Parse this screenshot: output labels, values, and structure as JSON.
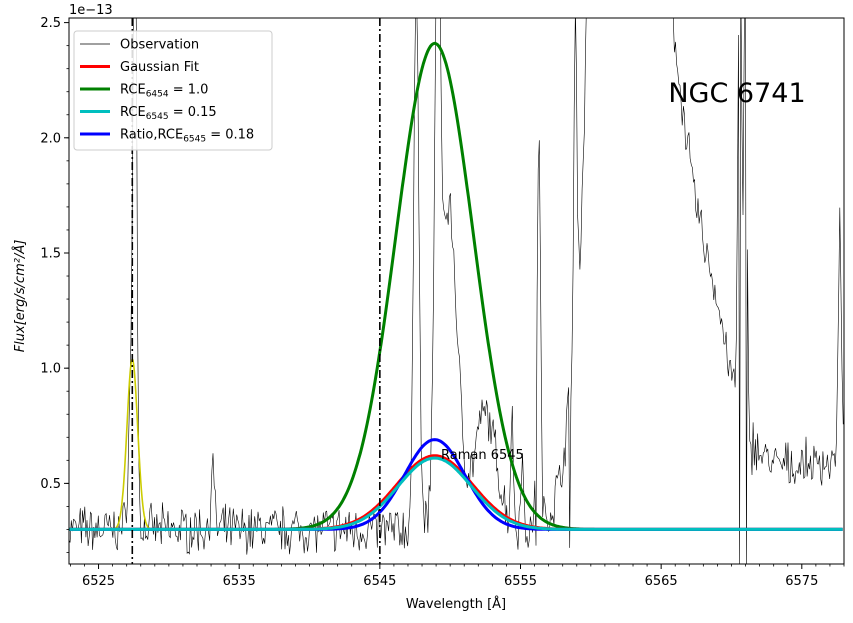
{
  "chart_data": {
    "type": "line",
    "title": "",
    "annotation_object": "NGC 6741",
    "annotation_raman": "Raman 6545",
    "xlabel": "Wavelength [Å]",
    "ylabel": "Flux[erg/s/cm²/Å]",
    "offset_text": "1e−13",
    "xlim": [
      6522.9,
      6578.0
    ],
    "ylim": [
      0.15,
      2.52
    ],
    "scale_factor": 1e-13,
    "x_ticks": [
      6525,
      6535,
      6545,
      6555,
      6565,
      6575
    ],
    "x_tick_labels": [
      "6525",
      "6535",
      "6545",
      "6555",
      "6565",
      "6575"
    ],
    "y_ticks": [
      0.5,
      1.0,
      1.5,
      2.0,
      2.5
    ],
    "y_tick_labels": [
      "0.5",
      "1.0",
      "1.5",
      "2.0",
      "2.5"
    ],
    "vlines": [
      6527.4,
      6545.0
    ],
    "grid": false,
    "legend_position": "top-left",
    "legend": [
      {
        "label": "Observation",
        "color": "#000000",
        "width": "thin"
      },
      {
        "label": "Gaussian Fit",
        "color": "#ff0000",
        "width": "thick"
      },
      {
        "label_main": "RCE",
        "label_sub": "6454",
        "label_rest": " = 1.0",
        "color": "#008000",
        "width": "thick"
      },
      {
        "label_main": "RCE",
        "label_sub": "6545",
        "label_rest": " = 0.15",
        "color": "#00bfbf",
        "width": "thick"
      },
      {
        "label_main": "Ratio,RCE",
        "label_sub": "6545",
        "label_rest": " = 0.18",
        "color": "#0000ff",
        "width": "thick"
      }
    ],
    "baseline": 0.3,
    "gaussian_models": [
      {
        "name": "Gaussian Fit",
        "color": "#ff0000",
        "center": 6548.9,
        "amplitude": 0.32,
        "sigma": 2.7
      },
      {
        "name": "RCE6454",
        "color": "#008000",
        "center": 6548.9,
        "amplitude": 2.11,
        "sigma": 2.75
      },
      {
        "name": "RCE6545",
        "color": "#00bfbf",
        "center": 6548.9,
        "amplitude": 0.31,
        "sigma": 2.6
      },
      {
        "name": "Ratio RCE6545",
        "color": "#0000ff",
        "center": 6548.9,
        "amplitude": 0.39,
        "sigma": 2.15
      }
    ],
    "nii_fit": {
      "color": "#cccc00",
      "center": 6527.4,
      "amplitude": 0.74,
      "sigma": 0.38
    },
    "observation_features": [
      {
        "center": 6527.4,
        "amplitude": 0.78,
        "sigma": 0.22
      },
      {
        "center": 6527.6,
        "amplitude": 2.4,
        "sigma": 0.12
      },
      {
        "center": 6533.1,
        "amplitude": 0.28,
        "sigma": 0.12
      },
      {
        "center": 6547.6,
        "amplitude": 2.4,
        "sigma": 0.18
      },
      {
        "center": 6549.1,
        "amplitude": 2.2,
        "sigma": 0.2
      },
      {
        "center": 6549.9,
        "amplitude": 1.4,
        "sigma": 0.6
      },
      {
        "center": 6552.5,
        "amplitude": 0.5,
        "sigma": 0.8
      },
      {
        "center": 6554.4,
        "amplitude": 0.45,
        "sigma": 0.1
      },
      {
        "center": 6555.1,
        "amplitude": 0.3,
        "sigma": 0.1
      },
      {
        "center": 6556.3,
        "amplitude": 1.7,
        "sigma": 0.12
      },
      {
        "center": 6558.9,
        "amplitude": 1.35,
        "sigma": 0.1
      },
      {
        "center": 6560.2,
        "amplitude": 2.4,
        "sigma": 0.3
      },
      {
        "center": 6560.8,
        "amplitude": 2.0,
        "sigma": 1.4
      },
      {
        "center": 6561.5,
        "amplitude": 0.6,
        "sigma": 0.15
      },
      {
        "center": 6562.9,
        "amplitude": 2.4,
        "sigma": 1.5
      },
      {
        "center": 6565.5,
        "amplitude": 1.3,
        "sigma": 1.2
      },
      {
        "center": 6568.0,
        "amplitude": 1.0,
        "sigma": 1.8
      },
      {
        "center": 6570.6,
        "amplitude": 2.2,
        "sigma": 0.13
      },
      {
        "center": 6571.0,
        "amplitude": 2.3,
        "sigma": 0.1
      },
      {
        "center": 6577.7,
        "amplitude": 1.05,
        "sigma": 0.1
      }
    ],
    "observation_dips": [
      {
        "x": 6570.6,
        "y": 0.13
      },
      {
        "x": 6571.05,
        "y": 0.13
      },
      {
        "x": 6558.5,
        "y": 0.22
      },
      {
        "x": 6556.1,
        "y": 0.23
      }
    ]
  }
}
